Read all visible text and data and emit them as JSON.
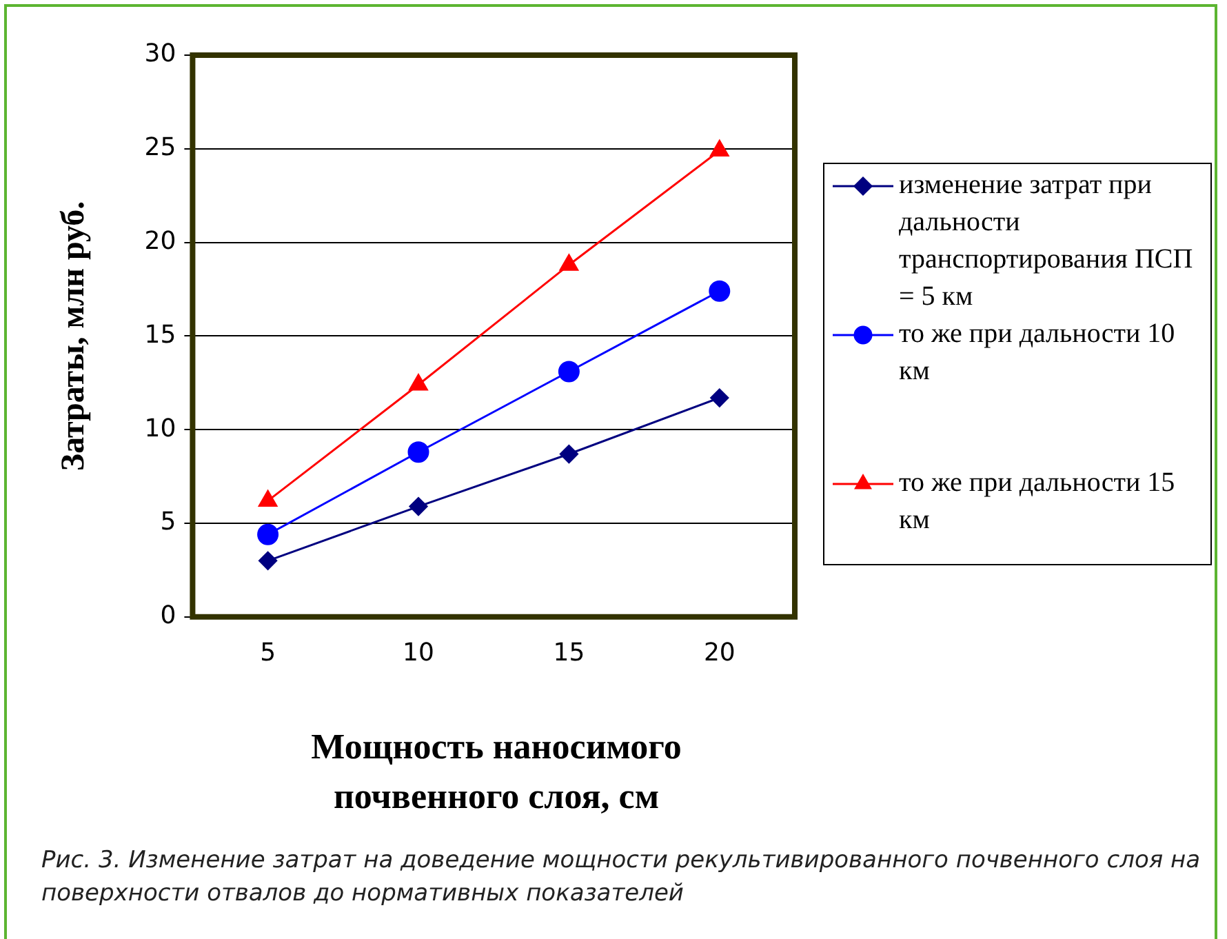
{
  "chart_data": {
    "type": "line",
    "xlabel": "Мощность наносимого почвенного слоя, см",
    "ylabel": "Затраты, млн руб.",
    "categories": [
      "5",
      "10",
      "15",
      "20"
    ],
    "series": [
      {
        "name": "изменение затрат при дальности транспортирования ПСП = 5 км",
        "color": "#000080",
        "marker": "diamond",
        "values": [
          3.0,
          5.9,
          8.7,
          11.7
        ]
      },
      {
        "name": "то же при дальности 10 км",
        "color": "#0000ff",
        "marker": "circle",
        "values": [
          4.4,
          8.8,
          13.1,
          17.4
        ]
      },
      {
        "name": "то же при дальности 15 км",
        "color": "#ff0000",
        "marker": "triangle",
        "values": [
          6.2,
          12.4,
          18.8,
          24.9
        ]
      }
    ],
    "ylim": [
      0,
      30
    ],
    "yticks": [
      0,
      5,
      10,
      15,
      20,
      25,
      30
    ],
    "grid": "y",
    "legend": "right",
    "line_style": "solid",
    "annotations": [
      "Рис. 3. Изменение затрат на доведение мощности рекультивированного почвенного слоя на поверхности отвалов до нормативных показателей"
    ]
  }
}
